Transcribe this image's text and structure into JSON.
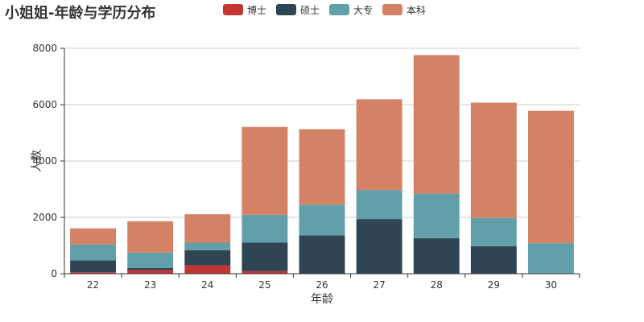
{
  "chart_data": {
    "type": "bar",
    "stacked": true,
    "title": "小姐姐-年龄与学历分布",
    "xlabel": "年龄",
    "ylabel": "人数",
    "categories": [
      "22",
      "23",
      "24",
      "25",
      "26",
      "27",
      "28",
      "29",
      "30"
    ],
    "ylim": [
      0,
      8000
    ],
    "yticks": [
      "0",
      "2000",
      "4000",
      "6000",
      "8000"
    ],
    "grid": true,
    "legend_position": "top",
    "series": [
      {
        "name": "博士",
        "color": "#c23531",
        "values": [
          50,
          130,
          290,
          90,
          0,
          0,
          0,
          0,
          0
        ]
      },
      {
        "name": "硕士",
        "color": "#2f4554",
        "values": [
          420,
          70,
          540,
          1010,
          1360,
          1940,
          1260,
          980,
          0
        ]
      },
      {
        "name": "大专",
        "color": "#61a0a8",
        "values": [
          570,
          550,
          270,
          990,
          1090,
          1030,
          1580,
          1000,
          1080
        ]
      },
      {
        "name": "本科",
        "color": "#d48265",
        "values": [
          570,
          1110,
          1010,
          3120,
          2680,
          3220,
          4920,
          4090,
          4700
        ]
      }
    ]
  }
}
